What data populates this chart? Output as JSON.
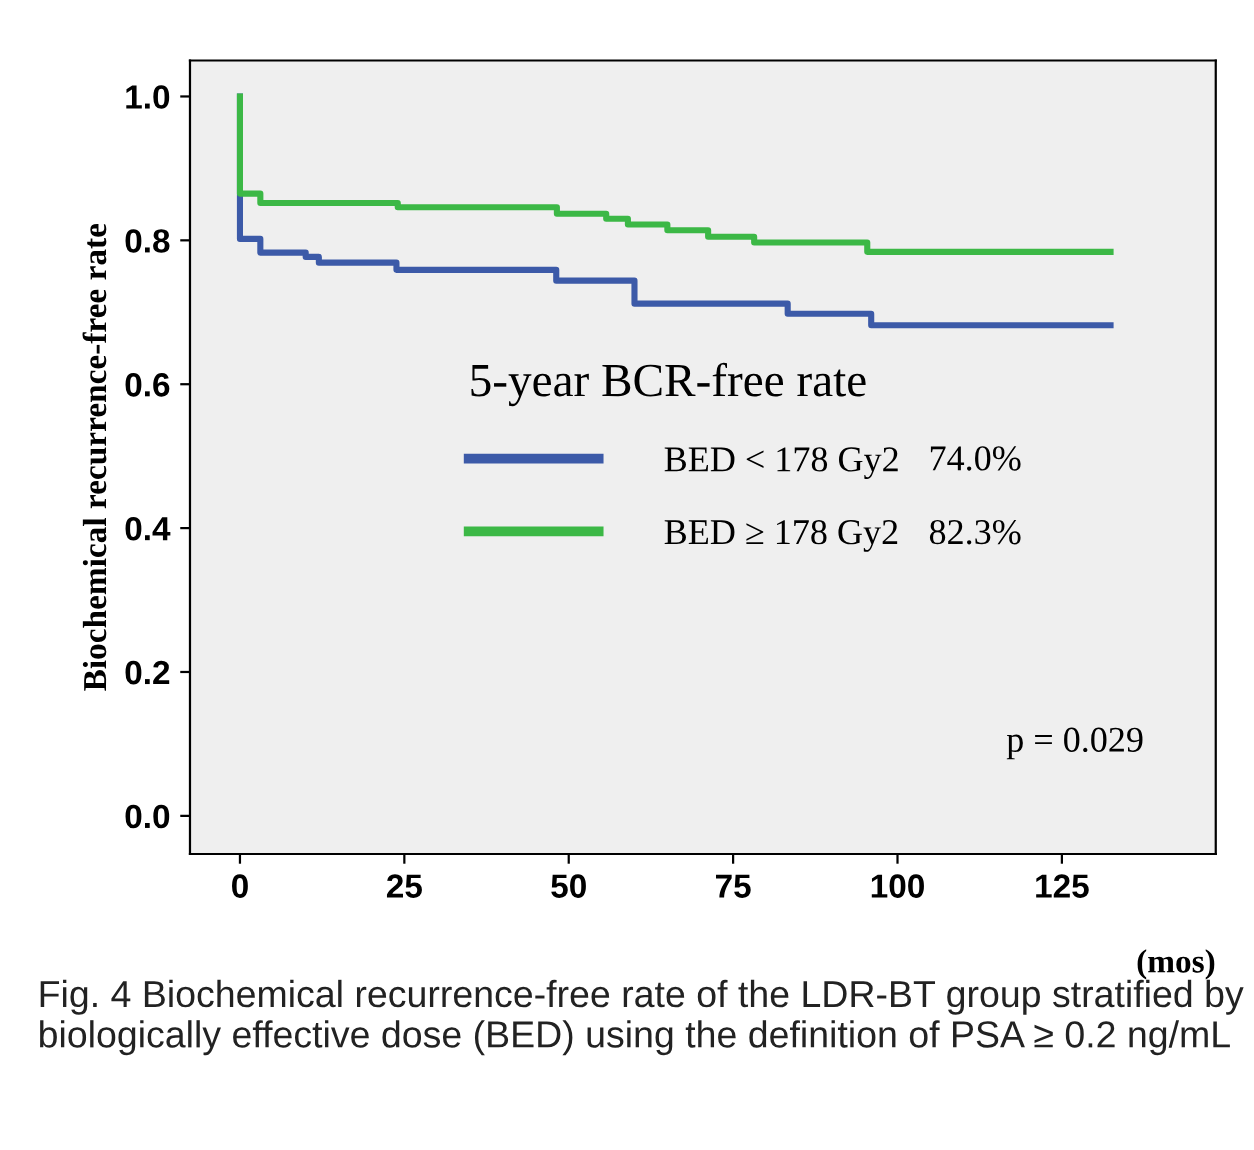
{
  "chart_data": {
    "type": "step",
    "xlabel": "(mos)",
    "ylabel": "Biochemical recurrence-free rate",
    "legend_title": "5-year BCR-free rate",
    "series": [
      {
        "name": "BED < 178 Gy2",
        "color": "#3c5aa8",
        "x": [
          0,
          0,
          3.1,
          10,
          12,
          23.8,
          48.1,
          60,
          83.3,
          96,
          132.4
        ],
        "values": [
          1.0,
          0.802,
          0.783,
          0.777,
          0.769,
          0.759,
          0.744,
          0.712,
          0.698,
          0.682,
          0.682
        ]
      },
      {
        "name": "BED ≥ 178 Gy2",
        "color": "#3cb846",
        "x": [
          0,
          0,
          3.1,
          24,
          48.2,
          55.7,
          59,
          65,
          71.2,
          78.2,
          95.4,
          132.4
        ],
        "values": [
          1.0,
          0.865,
          0.852,
          0.846,
          0.837,
          0.83,
          0.822,
          0.814,
          0.805,
          0.797,
          0.784,
          0.784
        ]
      }
    ],
    "annotations": [
      "74.0%",
      "82.3%",
      "p = 0.029",
      "Fig. 4 Biochemical recurrence-free rate of the LDR-BT group stratified by biologically effective dose (BED) using the definition of PSA ≥ 0.2 ng/mL"
    ],
    "xlim": [
      -7.6,
      148.4
    ],
    "ylim": [
      -0.053,
      1.05
    ],
    "xticks": [
      0,
      25,
      50,
      75,
      100,
      125
    ],
    "yticks": [
      {
        "value": 0.0,
        "label": "0.0"
      },
      {
        "value": 0.2,
        "label": "0.2"
      },
      {
        "value": 0.4,
        "label": "0.4"
      },
      {
        "value": 0.6,
        "label": "0.6"
      },
      {
        "value": 0.8,
        "label": "0.8"
      },
      {
        "value": 1.0,
        "label": "1.0"
      }
    ],
    "grid": false,
    "legend": "center",
    "marker": "none",
    "line_style": "solid"
  }
}
